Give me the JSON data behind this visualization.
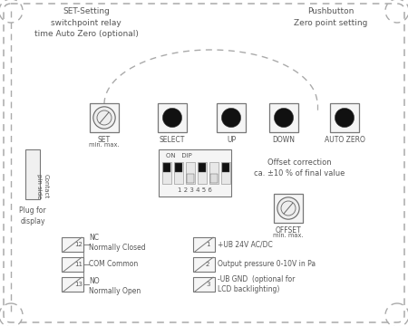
{
  "bg_color": "#ffffff",
  "dash_color": "#aaaaaa",
  "text_color": "#555555",
  "title_text": "SET-Setting\nswitchpoint relay\ntime Auto Zero (optional)",
  "pushbutton_text": "Pushbutton\nZero point setting",
  "offset_correction_text": "Offset correction\nca. ±10 % of final value",
  "btn_labels": [
    "SET",
    "SELECT",
    "UP",
    "DOWN",
    "AUTO ZERO"
  ],
  "btn_sublabel": "min. max.",
  "offset_label": "OFFSET",
  "offset_sublabel": "min. max.",
  "contact_label": "Contact\npin side",
  "plug_label": "Plug for\ndisplay",
  "dip_header": "ON   DIP",
  "dip_numbers": "1 2 3 4 5 6",
  "lt_nums": [
    "12",
    "11",
    "13"
  ],
  "lt_descs": [
    "NC\nNormally Closed",
    "COM Common",
    "NO\nNormally Open"
  ],
  "rt_nums": [
    "1",
    "2",
    "3"
  ],
  "rt_descs": [
    "+UB 24V AC/DC",
    "Output pressure 0-10V in Pa",
    "-UB GND  (optional for\nLCD backlighting)"
  ]
}
